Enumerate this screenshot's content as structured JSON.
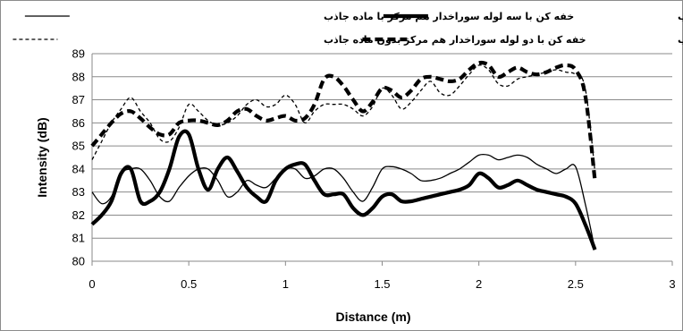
{
  "chart_data": {
    "type": "line",
    "xlabel": "Distance (m)",
    "ylabel": "Intensity (dB)",
    "xlim": [
      0,
      3
    ],
    "ylim": [
      80,
      89
    ],
    "xticks": [
      "0",
      "0.5",
      "1",
      "1.5",
      "2",
      "2.5",
      "3"
    ],
    "yticks": [
      "80",
      "81",
      "82",
      "83",
      "84",
      "85",
      "86",
      "87",
      "88",
      "89"
    ],
    "grid": "horizontal",
    "legend_position": "top",
    "series": [
      {
        "name": "خفه کن با سه لوله سوراخدار هم مرکز با ماده جاذب",
        "style": "thin-solid",
        "x": [
          0,
          0.05,
          0.1,
          0.15,
          0.2,
          0.25,
          0.3,
          0.35,
          0.4,
          0.45,
          0.5,
          0.55,
          0.6,
          0.65,
          0.7,
          0.75,
          0.8,
          0.85,
          0.9,
          0.95,
          1.0,
          1.05,
          1.1,
          1.15,
          1.2,
          1.25,
          1.3,
          1.35,
          1.4,
          1.45,
          1.5,
          1.55,
          1.6,
          1.65,
          1.7,
          1.75,
          1.8,
          1.85,
          1.9,
          1.95,
          2.0,
          2.05,
          2.1,
          2.15,
          2.2,
          2.25,
          2.3,
          2.35,
          2.4,
          2.45,
          2.5,
          2.55,
          2.6
        ],
        "values": [
          83.0,
          82.5,
          82.8,
          83.8,
          84.0,
          84.0,
          83.5,
          82.8,
          82.6,
          83.2,
          83.7,
          84.0,
          84.0,
          83.5,
          82.8,
          83.0,
          83.5,
          83.3,
          83.2,
          83.6,
          84.0,
          84.0,
          83.6,
          83.7,
          84.0,
          84.0,
          83.6,
          83.0,
          82.6,
          83.2,
          84.0,
          84.1,
          84.0,
          83.8,
          83.5,
          83.5,
          83.6,
          83.8,
          84.0,
          84.3,
          84.6,
          84.6,
          84.4,
          84.5,
          84.6,
          84.5,
          84.2,
          84.0,
          83.8,
          84.0,
          84.1,
          82.5,
          80.5
        ]
      },
      {
        "name": "خفه کن با دو لوله سوراخدار هم مرکز با ماده جاذب",
        "style": "thick-solid",
        "x": [
          0,
          0.05,
          0.1,
          0.15,
          0.2,
          0.25,
          0.3,
          0.35,
          0.4,
          0.45,
          0.5,
          0.55,
          0.6,
          0.65,
          0.7,
          0.75,
          0.8,
          0.85,
          0.9,
          0.95,
          1.0,
          1.05,
          1.1,
          1.15,
          1.2,
          1.25,
          1.3,
          1.35,
          1.4,
          1.45,
          1.5,
          1.55,
          1.6,
          1.65,
          1.7,
          1.75,
          1.8,
          1.85,
          1.9,
          1.95,
          2.0,
          2.05,
          2.1,
          2.15,
          2.2,
          2.25,
          2.3,
          2.35,
          2.4,
          2.45,
          2.5,
          2.55,
          2.6
        ],
        "values": [
          81.6,
          82.0,
          82.6,
          83.8,
          84.0,
          82.6,
          82.6,
          83.0,
          84.0,
          85.4,
          85.5,
          84.0,
          83.1,
          84.0,
          84.5,
          83.9,
          83.2,
          82.8,
          82.6,
          83.5,
          84.0,
          84.2,
          84.2,
          83.5,
          82.9,
          82.9,
          82.9,
          82.3,
          82.0,
          82.3,
          82.8,
          82.9,
          82.6,
          82.6,
          82.7,
          82.8,
          82.9,
          83.0,
          83.1,
          83.3,
          83.8,
          83.6,
          83.2,
          83.3,
          83.5,
          83.3,
          83.1,
          83.0,
          82.9,
          82.8,
          82.5,
          81.6,
          80.5
        ]
      },
      {
        "name": "خفه کن با دو لوله سوراخدار هم مرکز بدون ماده جاذب",
        "style": "thin-dashed",
        "x": [
          0,
          0.05,
          0.1,
          0.15,
          0.2,
          0.25,
          0.3,
          0.35,
          0.4,
          0.45,
          0.5,
          0.55,
          0.6,
          0.65,
          0.7,
          0.75,
          0.8,
          0.85,
          0.9,
          0.95,
          1.0,
          1.05,
          1.1,
          1.15,
          1.2,
          1.25,
          1.3,
          1.35,
          1.4,
          1.45,
          1.5,
          1.55,
          1.6,
          1.65,
          1.7,
          1.75,
          1.8,
          1.85,
          1.9,
          1.95,
          2.0,
          2.05,
          2.1,
          2.15,
          2.2,
          2.25,
          2.3,
          2.35,
          2.4,
          2.45,
          2.5,
          2.55,
          2.6
        ],
        "values": [
          84.4,
          85.2,
          86.0,
          86.6,
          87.1,
          86.5,
          86.0,
          85.3,
          85.2,
          85.8,
          86.8,
          86.5,
          86.1,
          85.9,
          86.0,
          86.3,
          86.8,
          87.0,
          86.7,
          86.8,
          87.2,
          86.8,
          86.0,
          86.5,
          86.8,
          86.8,
          86.8,
          86.6,
          86.3,
          86.7,
          87.5,
          87.2,
          86.6,
          86.9,
          87.4,
          87.8,
          87.3,
          87.2,
          87.6,
          88.1,
          88.5,
          88.3,
          87.7,
          87.6,
          87.9,
          88.0,
          88.1,
          88.2,
          88.3,
          88.2,
          88.1,
          87.5,
          83.9
        ]
      },
      {
        "name": "خفه کن با سه لوله سوراخدار هم مرکز بدون ماده جاذب",
        "style": "thick-dashed",
        "x": [
          0,
          0.05,
          0.1,
          0.15,
          0.2,
          0.25,
          0.3,
          0.35,
          0.4,
          0.45,
          0.5,
          0.55,
          0.6,
          0.65,
          0.7,
          0.75,
          0.8,
          0.85,
          0.9,
          0.95,
          1.0,
          1.05,
          1.1,
          1.15,
          1.2,
          1.25,
          1.3,
          1.35,
          1.4,
          1.45,
          1.5,
          1.55,
          1.6,
          1.65,
          1.7,
          1.75,
          1.8,
          1.85,
          1.9,
          1.95,
          2.0,
          2.05,
          2.1,
          2.15,
          2.2,
          2.25,
          2.3,
          2.35,
          2.4,
          2.45,
          2.5,
          2.55,
          2.6
        ],
        "values": [
          85.0,
          85.5,
          86.0,
          86.4,
          86.5,
          86.2,
          85.8,
          85.5,
          85.5,
          86.0,
          86.1,
          86.1,
          86.0,
          85.9,
          86.1,
          86.5,
          86.6,
          86.3,
          86.1,
          86.2,
          86.3,
          86.1,
          86.2,
          86.8,
          87.9,
          88.0,
          87.6,
          87.0,
          86.5,
          86.9,
          87.5,
          87.4,
          87.1,
          87.4,
          87.9,
          88.0,
          87.9,
          87.8,
          87.9,
          88.3,
          88.6,
          88.5,
          88.0,
          88.2,
          88.4,
          88.2,
          88.1,
          88.2,
          88.4,
          88.5,
          88.3,
          87.2,
          83.5
        ]
      }
    ]
  }
}
